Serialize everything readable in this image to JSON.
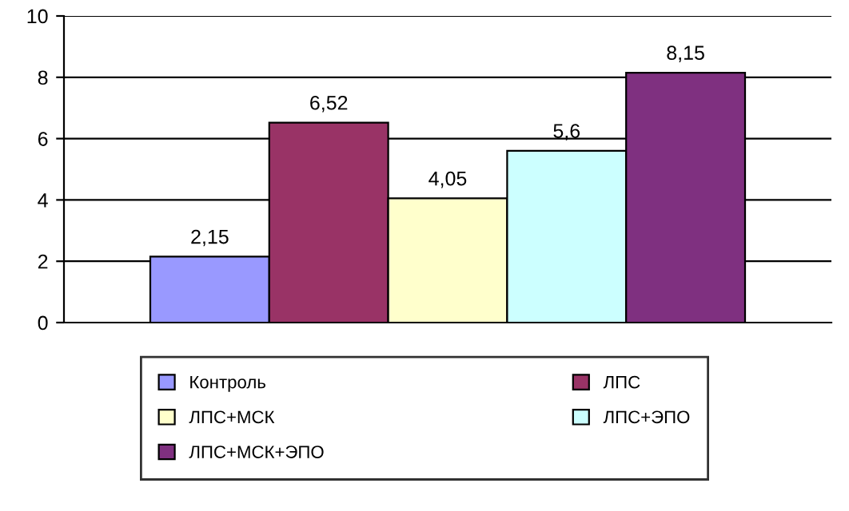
{
  "chart_data": {
    "type": "bar",
    "categories": [
      null
    ],
    "series": [
      {
        "name": "Контроль",
        "color": "#9999ff",
        "values": [
          2.15
        ],
        "value_labels": [
          "2,15"
        ]
      },
      {
        "name": "ЛПС",
        "color": "#993366",
        "values": [
          6.52
        ],
        "value_labels": [
          "6,52"
        ]
      },
      {
        "name": "ЛПС+МСК",
        "color": "#ffffcc",
        "values": [
          4.05
        ],
        "value_labels": [
          "4,05"
        ]
      },
      {
        "name": "ЛПС+ЭПО",
        "color": "#ccffff",
        "values": [
          5.6
        ],
        "value_labels": [
          "5,6"
        ]
      },
      {
        "name": "ЛПС+МСК+ЭПО",
        "color": "#7f3080",
        "values": [
          8.15
        ],
        "value_labels": [
          "8,15"
        ]
      }
    ],
    "ylim": [
      0,
      10
    ],
    "yticks": [
      0,
      2,
      4,
      6,
      8,
      10
    ],
    "grid": "y",
    "legend": "bottom"
  }
}
